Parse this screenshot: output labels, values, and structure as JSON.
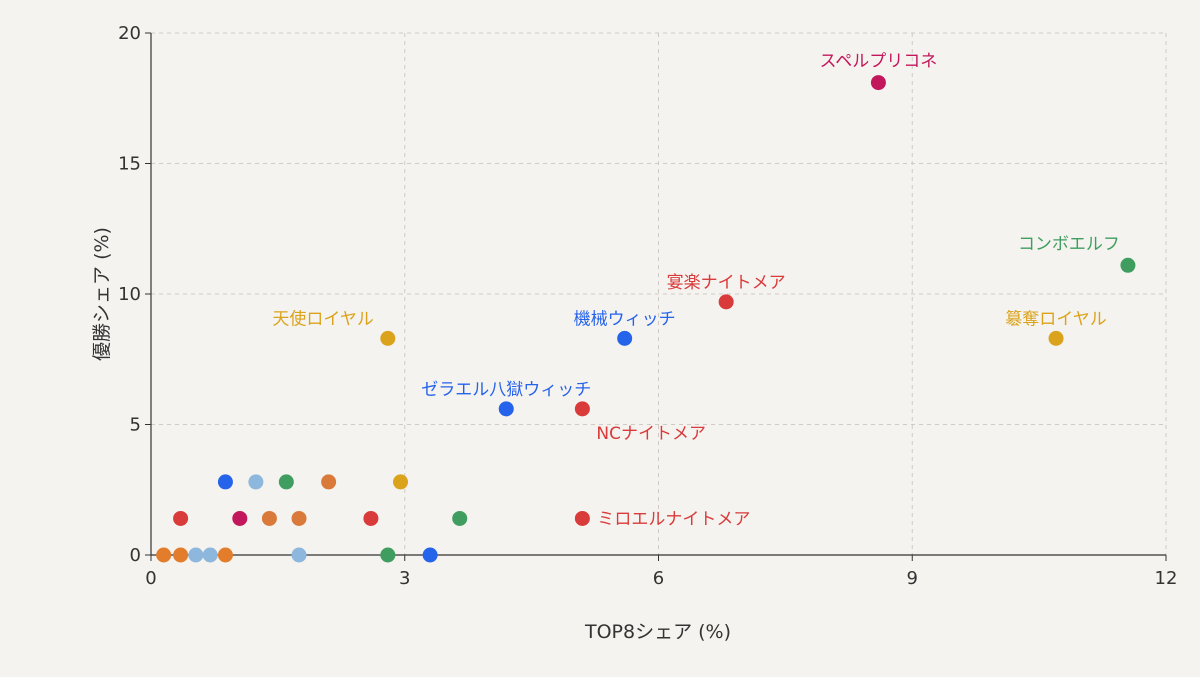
{
  "chart_data": {
    "type": "scatter",
    "title": "",
    "xlabel": "TOP8シェア (%)",
    "ylabel": "優勝シェア (%)",
    "xlim": [
      0,
      12
    ],
    "ylim": [
      0,
      20
    ],
    "xticks": [
      "0",
      "3",
      "6",
      "9",
      "12"
    ],
    "yticks": [
      "0",
      "5",
      "10",
      "15",
      "20"
    ],
    "grid": true,
    "legend": "none",
    "colors": {
      "nightmare": "#d93a3a",
      "royal": "#dba31c",
      "witch": "#2563eb",
      "elf": "#3f9e5f",
      "prince": "#c2185b",
      "orange": "#e37d2b",
      "lightblue": "#8db7dc",
      "brown": "#d97a3a"
    },
    "points": [
      {
        "x": 8.6,
        "y": 18.1,
        "label": "スペルプリコネ",
        "color": "#c2185b"
      },
      {
        "x": 11.55,
        "y": 11.1,
        "label": "コンボエルフ",
        "color": "#3f9e5f"
      },
      {
        "x": 6.8,
        "y": 9.7,
        "label": "宴楽ナイトメア",
        "color": "#d93a3a"
      },
      {
        "x": 10.7,
        "y": 8.3,
        "label": "簒奪ロイヤル",
        "color": "#dba31c"
      },
      {
        "x": 5.6,
        "y": 8.3,
        "label": "機械ウィッチ",
        "color": "#2563eb"
      },
      {
        "x": 2.8,
        "y": 8.3,
        "label": "天使ロイヤル",
        "color": "#dba31c"
      },
      {
        "x": 4.2,
        "y": 5.6,
        "label": "ゼラエル八獄ウィッチ",
        "color": "#2563eb"
      },
      {
        "x": 5.1,
        "y": 5.6,
        "label": "NCナイトメア",
        "color": "#d93a3a"
      },
      {
        "x": 5.1,
        "y": 1.4,
        "label": "ミロエルナイトメア",
        "color": "#d93a3a"
      },
      {
        "x": 0.88,
        "y": 2.8,
        "label": "",
        "color": "#2563eb"
      },
      {
        "x": 1.24,
        "y": 2.8,
        "label": "",
        "color": "#8db7dc"
      },
      {
        "x": 1.6,
        "y": 2.8,
        "label": "",
        "color": "#3f9e5f"
      },
      {
        "x": 2.1,
        "y": 2.8,
        "label": "",
        "color": "#d97a3a"
      },
      {
        "x": 2.95,
        "y": 2.8,
        "label": "",
        "color": "#dba31c"
      },
      {
        "x": 0.35,
        "y": 1.4,
        "label": "",
        "color": "#d93a3a"
      },
      {
        "x": 1.05,
        "y": 1.4,
        "label": "",
        "color": "#c2185b"
      },
      {
        "x": 1.4,
        "y": 1.4,
        "label": "",
        "color": "#d97a3a"
      },
      {
        "x": 1.75,
        "y": 1.4,
        "label": "",
        "color": "#d97a3a"
      },
      {
        "x": 2.6,
        "y": 1.4,
        "label": "",
        "color": "#d93a3a"
      },
      {
        "x": 3.65,
        "y": 1.4,
        "label": "",
        "color": "#3f9e5f"
      },
      {
        "x": 0.15,
        "y": 0,
        "label": "",
        "color": "#e37d2b"
      },
      {
        "x": 0.35,
        "y": 0,
        "label": "",
        "color": "#e37d2b"
      },
      {
        "x": 0.53,
        "y": 0,
        "label": "",
        "color": "#8db7dc"
      },
      {
        "x": 0.7,
        "y": 0,
        "label": "",
        "color": "#8db7dc"
      },
      {
        "x": 0.88,
        "y": 0,
        "label": "",
        "color": "#e37d2b"
      },
      {
        "x": 1.75,
        "y": 0,
        "label": "",
        "color": "#8db7dc"
      },
      {
        "x": 2.8,
        "y": 0,
        "label": "",
        "color": "#3f9e5f"
      },
      {
        "x": 3.3,
        "y": 0,
        "label": "",
        "color": "#2563eb"
      }
    ]
  }
}
